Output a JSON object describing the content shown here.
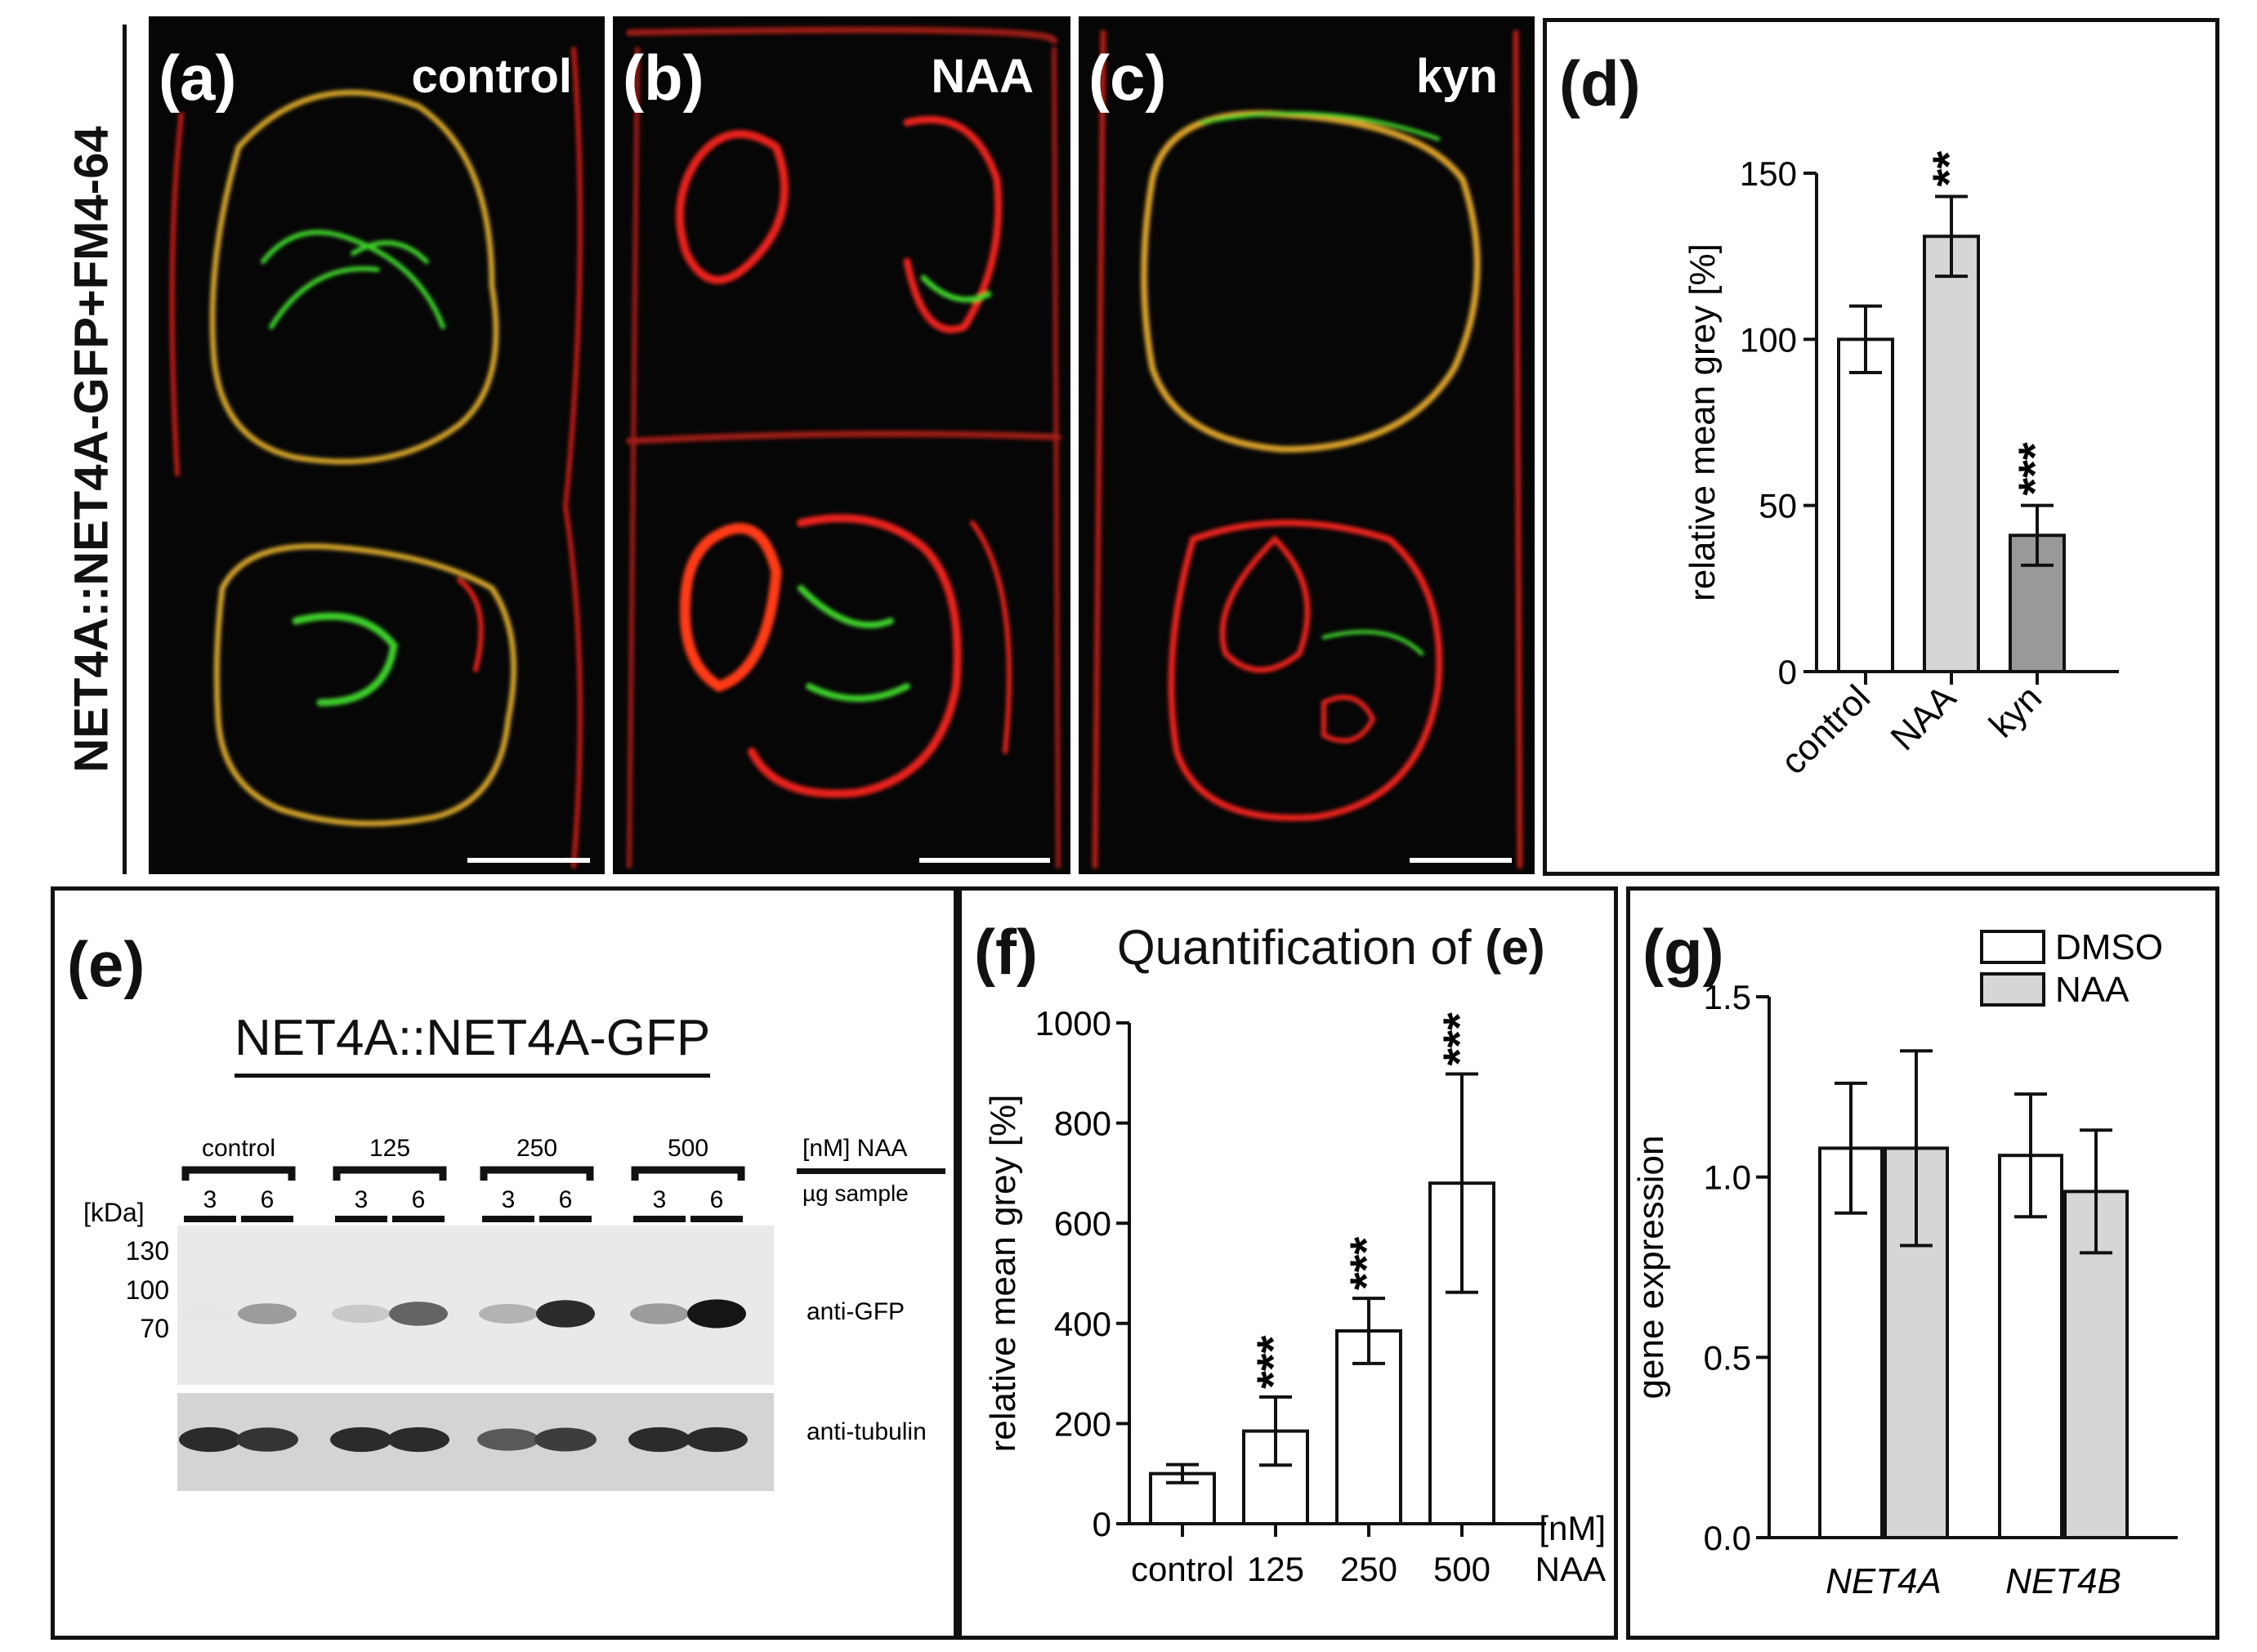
{
  "figure": {
    "side_label": "NET4A::NET4A-GFP+FM4-64",
    "panels": {
      "a": {
        "letter": "(a)",
        "condition": "control"
      },
      "b": {
        "letter": "(b)",
        "condition": "NAA"
      },
      "c": {
        "letter": "(c)",
        "condition": "kyn"
      },
      "d": {
        "letter": "(d)"
      },
      "e": {
        "letter": "(e)"
      },
      "f": {
        "letter": "(f)",
        "title_prefix": "Quantification of ",
        "title_ref": "(e)"
      },
      "g": {
        "letter": "(g)"
      }
    },
    "colors": {
      "membrane_red": "#e8221a",
      "gfp_green": "#3ecf2a",
      "bar_white": "#ffffff",
      "bar_light_grey": "#d6d6d6",
      "bar_dark_grey": "#999999"
    }
  },
  "blot": {
    "title": "NET4A::NET4A-GFP",
    "groups": [
      "control",
      "125",
      "250",
      "500"
    ],
    "loads": [
      "3",
      "6",
      "3",
      "6",
      "3",
      "6",
      "3",
      "6"
    ],
    "header_right_top": "[nM] NAA",
    "header_right_bottom": "µg sample",
    "kda_label": "[kDa]",
    "markers": [
      "130",
      "100",
      "70"
    ],
    "row_labels": [
      "anti-GFP",
      "anti-tubulin"
    ],
    "gfp_band_intensity": [
      0.02,
      0.35,
      0.15,
      0.6,
      0.25,
      0.85,
      0.35,
      0.95
    ],
    "tubulin_band_intensity": [
      0.85,
      0.8,
      0.85,
      0.85,
      0.6,
      0.75,
      0.85,
      0.85
    ]
  },
  "chart_data": [
    {
      "panel": "d",
      "type": "bar",
      "categories": [
        "control",
        "NAA",
        "kyn"
      ],
      "values": [
        100,
        131,
        41
      ],
      "errors": [
        10,
        12,
        9
      ],
      "significance": [
        "",
        "**",
        "***"
      ],
      "bar_colors": [
        "#ffffff",
        "#d6d6d6",
        "#999999"
      ],
      "ylabel": "relative mean grey  [%]",
      "ylim": [
        0,
        150
      ],
      "yticks": [
        0,
        50,
        100,
        150
      ]
    },
    {
      "panel": "f",
      "type": "bar",
      "categories": [
        "control",
        "125",
        "250",
        "500"
      ],
      "values": [
        100,
        185,
        385,
        680
      ],
      "errors": [
        18,
        68,
        65,
        218
      ],
      "significance": [
        "",
        "***",
        "***",
        "***"
      ],
      "ylabel": "relative mean grey  [%]",
      "xlabel_unit_top": "[nM]",
      "xlabel_unit_bottom": "NAA",
      "ylim": [
        0,
        1000
      ],
      "yticks": [
        0,
        200,
        400,
        600,
        800,
        1000
      ]
    },
    {
      "panel": "g",
      "type": "bar",
      "categories": [
        "NET4A",
        "NET4B"
      ],
      "series": [
        {
          "name": "DMSO",
          "values": [
            1.08,
            1.06
          ],
          "errors": [
            0.18,
            0.17
          ],
          "color": "#ffffff"
        },
        {
          "name": "NAA",
          "values": [
            1.08,
            0.96
          ],
          "errors": [
            0.27,
            0.17
          ],
          "color": "#d6d6d6"
        }
      ],
      "ylabel": "gene expression",
      "ylim": [
        0,
        1.5
      ],
      "yticks": [
        "0.0",
        "0.5",
        "1.0",
        "1.5"
      ],
      "legend": "top-right"
    }
  ]
}
